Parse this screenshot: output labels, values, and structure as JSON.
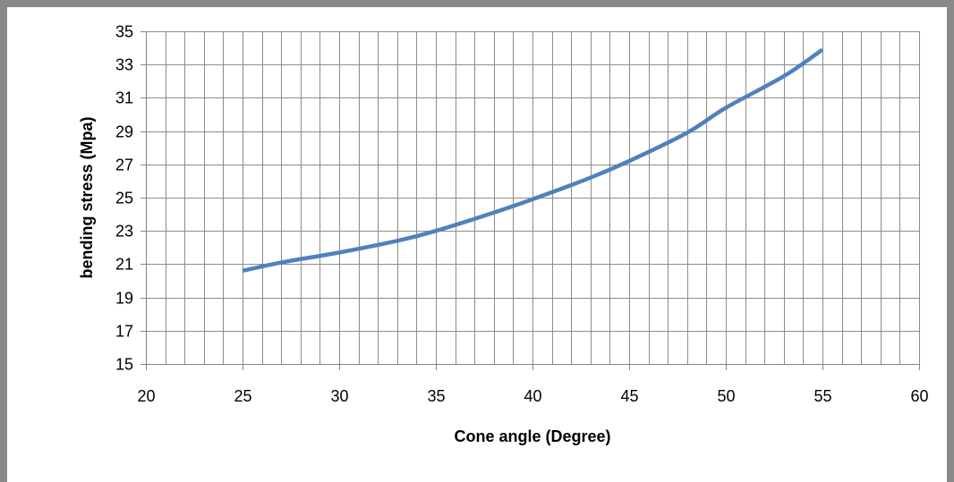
{
  "chart_data": {
    "type": "line",
    "title": "",
    "xlabel": "Cone angle (Degree)",
    "ylabel": "bending stress (Mpa)",
    "xlim": [
      20,
      60
    ],
    "ylim": [
      15,
      35
    ],
    "x_ticks": [
      "20",
      "25",
      "30",
      "35",
      "40",
      "45",
      "50",
      "55",
      "60"
    ],
    "y_ticks": [
      "15",
      "17",
      "19",
      "21",
      "23",
      "25",
      "27",
      "29",
      "31",
      "33",
      "35"
    ],
    "x_minor_step": 1,
    "y_minor_step": 2,
    "grid": true,
    "legend": "none",
    "series": [
      {
        "color": "#4f81bd",
        "x": [
          25,
          27,
          30,
          33,
          35,
          38,
          40,
          43,
          45,
          48,
          50,
          53,
          55
        ],
        "y": [
          20.6,
          21.1,
          21.7,
          22.4,
          23.0,
          24.1,
          24.9,
          26.2,
          27.2,
          28.9,
          30.4,
          32.3,
          33.9
        ]
      }
    ]
  }
}
